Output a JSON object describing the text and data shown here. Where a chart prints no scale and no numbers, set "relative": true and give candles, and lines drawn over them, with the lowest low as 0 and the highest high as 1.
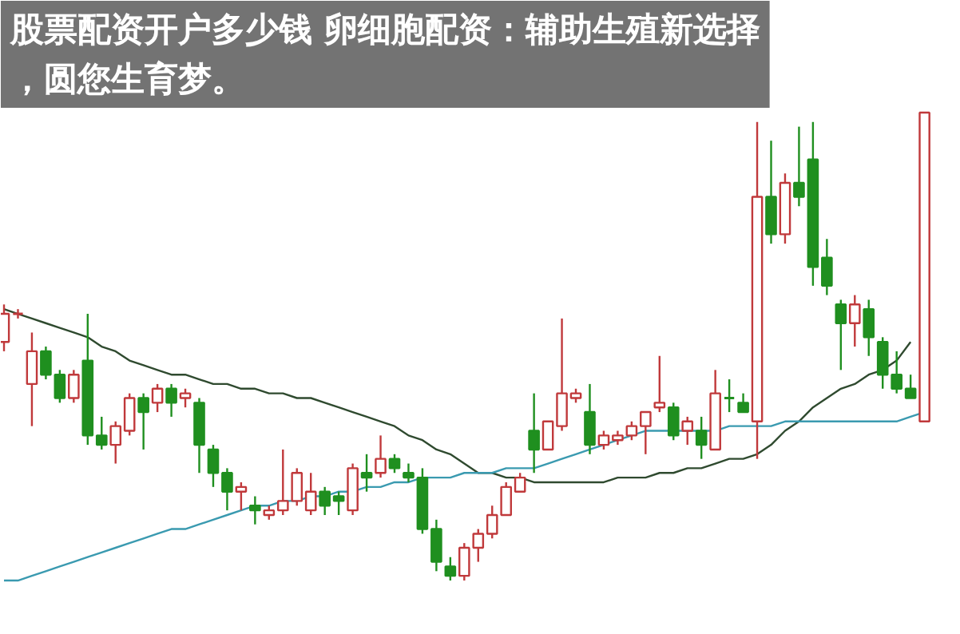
{
  "chart_data": {
    "type": "candlestick",
    "title": "股票配资开户多少钱 卵细胞配资：辅助生殖新选择，圆您生育梦。",
    "relative": true,
    "categories": [
      null,
      null,
      null,
      null,
      null,
      null,
      null,
      null,
      null,
      null,
      null,
      null,
      null,
      null,
      null,
      null,
      null,
      null,
      null,
      null,
      null,
      null,
      null,
      null,
      null,
      null,
      null,
      null,
      null,
      null,
      null,
      null,
      null,
      null,
      null,
      null,
      null,
      null,
      null,
      null,
      null,
      null,
      null,
      null,
      null,
      null,
      null,
      null,
      null,
      null,
      null,
      null,
      null,
      null,
      null,
      null,
      null,
      null,
      null,
      null,
      null,
      null,
      null,
      null,
      null,
      null,
      null
    ],
    "ohlc": [
      [
        0.51,
        0.59,
        0.49,
        0.57
      ],
      [
        0.57,
        0.58,
        0.56,
        0.57
      ],
      [
        0.42,
        0.53,
        0.33,
        0.49
      ],
      [
        0.49,
        0.5,
        0.43,
        0.44
      ],
      [
        0.44,
        0.45,
        0.38,
        0.39
      ],
      [
        0.39,
        0.45,
        0.38,
        0.44
      ],
      [
        0.47,
        0.57,
        0.29,
        0.31
      ],
      [
        0.31,
        0.35,
        0.28,
        0.29
      ],
      [
        0.29,
        0.34,
        0.25,
        0.33
      ],
      [
        0.32,
        0.4,
        0.31,
        0.39
      ],
      [
        0.39,
        0.4,
        0.28,
        0.36
      ],
      [
        0.38,
        0.42,
        0.36,
        0.41
      ],
      [
        0.41,
        0.42,
        0.35,
        0.38
      ],
      [
        0.39,
        0.41,
        0.37,
        0.4
      ],
      [
        0.38,
        0.39,
        0.23,
        0.29
      ],
      [
        0.28,
        0.29,
        0.2,
        0.23
      ],
      [
        0.23,
        0.24,
        0.15,
        0.19
      ],
      [
        0.19,
        0.21,
        0.15,
        0.2
      ],
      [
        0.16,
        0.18,
        0.12,
        0.15
      ],
      [
        0.14,
        0.16,
        0.13,
        0.15
      ],
      [
        0.15,
        0.28,
        0.14,
        0.17
      ],
      [
        0.17,
        0.24,
        0.16,
        0.23
      ],
      [
        0.15,
        0.23,
        0.14,
        0.19
      ],
      [
        0.19,
        0.2,
        0.14,
        0.16
      ],
      [
        0.18,
        0.19,
        0.14,
        0.17
      ],
      [
        0.15,
        0.25,
        0.14,
        0.24
      ],
      [
        0.23,
        0.27,
        0.19,
        0.22
      ],
      [
        0.23,
        0.31,
        0.22,
        0.26
      ],
      [
        0.26,
        0.27,
        0.23,
        0.24
      ],
      [
        0.23,
        0.25,
        0.21,
        0.22
      ],
      [
        0.22,
        0.24,
        0.1,
        0.11
      ],
      [
        0.11,
        0.13,
        0.02,
        0.04
      ],
      [
        0.03,
        0.05,
        0,
        0.01
      ],
      [
        0.01,
        0.08,
        0.0,
        0.07
      ],
      [
        0.07,
        0.11,
        0.04,
        0.1
      ],
      [
        0.1,
        0.16,
        0.09,
        0.14
      ],
      [
        0.14,
        0.21,
        0.14,
        0.2
      ],
      [
        0.19,
        0.23,
        0.19,
        0.22
      ],
      [
        0.32,
        0.4,
        0.23,
        0.28
      ],
      [
        0.28,
        0.34,
        0.28,
        0.34
      ],
      [
        0.33,
        0.56,
        0.32,
        0.4
      ],
      [
        0.39,
        0.41,
        0.38,
        0.4
      ],
      [
        0.36,
        0.42,
        0.27,
        0.29
      ],
      [
        0.29,
        0.32,
        0.28,
        0.31
      ],
      [
        0.3,
        0.32,
        0.29,
        0.31
      ],
      [
        0.31,
        0.34,
        0.3,
        0.33
      ],
      [
        0.33,
        0.36,
        0.27,
        0.36
      ],
      [
        0.37,
        0.48,
        0.36,
        0.38
      ],
      [
        0.37,
        0.38,
        0.3,
        0.31
      ],
      [
        0.32,
        0.35,
        0.29,
        0.34
      ],
      [
        0.32,
        0.35,
        0.26,
        0.29
      ],
      [
        0.28,
        0.45,
        0.28,
        0.4
      ],
      [
        0.39,
        0.43,
        0.36,
        0.39
      ],
      [
        0.38,
        0.4,
        0.36,
        0.36
      ],
      [
        0.34,
        0.98,
        0.26,
        0.82
      ],
      [
        0.82,
        0.94,
        0.72,
        0.74
      ],
      [
        0.74,
        0.87,
        0.72,
        0.85
      ],
      [
        0.85,
        0.97,
        0.8,
        0.82
      ],
      [
        0.9,
        0.98,
        0.63,
        0.67
      ],
      [
        0.69,
        0.73,
        0.61,
        0.63
      ],
      [
        0.59,
        0.6,
        0.45,
        0.55
      ],
      [
        0.55,
        0.61,
        0.5,
        0.59
      ],
      [
        0.58,
        0.6,
        0.48,
        0.52
      ],
      [
        0.51,
        0.52,
        0.41,
        0.44
      ],
      [
        0.44,
        0.49,
        0.4,
        0.41
      ],
      [
        0.41,
        0.44,
        0.39,
        0.39
      ],
      [
        0.34,
        1,
        0.34,
        1
      ]
    ],
    "colors": [
      "#c0393b",
      "#c0393b",
      "#c0393b",
      "#1f8f1f",
      "#1f8f1f",
      "#c0393b",
      "#1f8f1f",
      "#1f8f1f",
      "#c0393b",
      "#c0393b",
      "#1f8f1f",
      "#c0393b",
      "#1f8f1f",
      "#c0393b",
      "#1f8f1f",
      "#1f8f1f",
      "#1f8f1f",
      "#c0393b",
      "#1f8f1f",
      "#c0393b",
      "#c0393b",
      "#c0393b",
      "#c0393b",
      "#1f8f1f",
      "#1f8f1f",
      "#c0393b",
      "#1f8f1f",
      "#c0393b",
      "#1f8f1f",
      "#1f8f1f",
      "#1f8f1f",
      "#1f8f1f",
      "#1f8f1f",
      "#c0393b",
      "#c0393b",
      "#c0393b",
      "#c0393b",
      "#c0393b",
      "#1f8f1f",
      "#c0393b",
      "#c0393b",
      "#c0393b",
      "#1f8f1f",
      "#c0393b",
      "#c0393b",
      "#c0393b",
      "#c0393b",
      "#c0393b",
      "#1f8f1f",
      "#c0393b",
      "#1f8f1f",
      "#c0393b",
      "#1f8f1f",
      "#1f8f1f",
      "#c0393b",
      "#1f8f1f",
      "#c0393b",
      "#1f8f1f",
      "#1f8f1f",
      "#1f8f1f",
      "#1f8f1f",
      "#c0393b",
      "#1f8f1f",
      "#1f8f1f",
      "#1f8f1f",
      "#1f8f1f",
      "#c0393b"
    ],
    "series": [
      {
        "type": "line",
        "color": "#2f4a2f",
        "values": [
          0.58,
          0.57,
          0.56,
          0.55,
          0.54,
          0.53,
          0.52,
          0.5,
          0.49,
          0.47,
          0.46,
          0.45,
          0.44,
          0.44,
          0.43,
          0.42,
          0.42,
          0.41,
          0.41,
          0.4,
          0.4,
          0.39,
          0.39,
          0.38,
          0.37,
          0.36,
          0.35,
          0.34,
          0.33,
          0.31,
          0.3,
          0.28,
          0.27,
          0.25,
          0.23,
          0.23,
          0.22,
          0.22,
          0.21,
          0.21,
          0.21,
          0.21,
          0.21,
          0.21,
          0.22,
          0.22,
          0.22,
          0.23,
          0.23,
          0.24,
          0.24,
          0.25,
          0.26,
          0.26,
          0.27,
          0.29,
          0.32,
          0.34,
          0.37,
          0.39,
          0.41,
          0.42,
          0.44,
          0.45,
          0.47,
          0.51,
          null
        ]
      },
      {
        "type": "line",
        "color": "#3a9ab0",
        "values": [
          0.0,
          0.0,
          0.01,
          0.02,
          0.03,
          0.04,
          0.05,
          0.06,
          0.07,
          0.08,
          0.09,
          0.1,
          0.11,
          0.11,
          0.12,
          0.13,
          0.14,
          0.15,
          0.16,
          0.16,
          0.17,
          0.17,
          0.18,
          0.18,
          0.19,
          0.19,
          0.2,
          0.2,
          0.21,
          0.21,
          0.22,
          0.22,
          0.22,
          0.23,
          0.23,
          0.23,
          0.24,
          0.24,
          0.24,
          0.25,
          0.26,
          0.27,
          0.28,
          0.29,
          0.3,
          0.31,
          0.32,
          0.32,
          0.32,
          0.32,
          0.32,
          0.32,
          0.33,
          0.33,
          0.33,
          0.33,
          0.34,
          0.34,
          0.34,
          0.34,
          0.34,
          0.34,
          0.34,
          0.34,
          0.34,
          0.35,
          0.36
        ]
      }
    ]
  }
}
